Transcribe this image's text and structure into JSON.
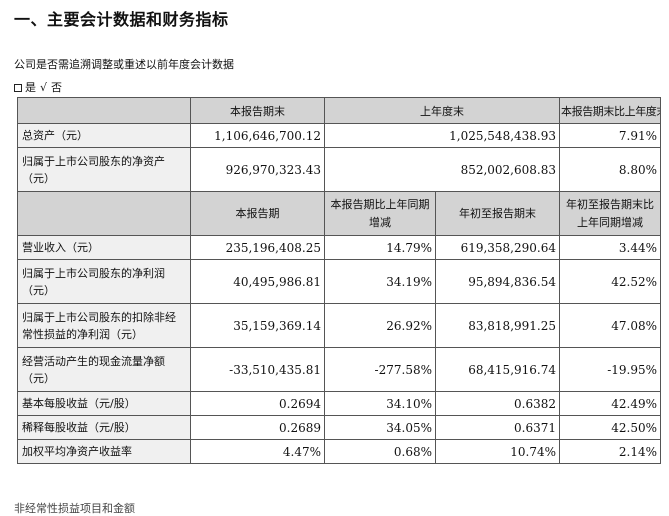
{
  "section": {
    "heading": "一、主要会计数据和财务指标",
    "question": "公司是否需追溯调整或重述以前年度会计数据",
    "answer_yes": "是",
    "answer_check": "√",
    "answer_no": "否"
  },
  "table1": {
    "headers": [
      "",
      "本报告期末",
      "上年度末",
      "本报告期末比上年度末增减"
    ],
    "rows": [
      {
        "label": "总资产（元）",
        "values": [
          "1,106,646,700.12",
          "1,025,548,438.93",
          "7.91%"
        ]
      },
      {
        "label": "归属于上市公司股东的净资产（元）",
        "values": [
          "926,970,323.43",
          "852,002,608.83",
          "8.80%"
        ]
      }
    ]
  },
  "table2": {
    "headers": [
      "",
      "本报告期",
      "本报告期比上年同期增减",
      "年初至报告期末",
      "年初至报告期末比上年同期增减"
    ],
    "rows": [
      {
        "label": "营业收入（元）",
        "values": [
          "235,196,408.25",
          "14.79%",
          "619,358,290.64",
          "3.44%"
        ]
      },
      {
        "label": "归属于上市公司股东的净利润（元）",
        "values": [
          "40,495,986.81",
          "34.19%",
          "95,894,836.54",
          "42.52%"
        ]
      },
      {
        "label": "归属于上市公司股东的扣除非经常性损益的净利润（元）",
        "values": [
          "35,159,369.14",
          "26.92%",
          "83,818,991.25",
          "47.08%"
        ]
      },
      {
        "label": "经营活动产生的现金流量净额（元）",
        "values": [
          "-33,510,435.81",
          "-277.58%",
          "68,415,916.74",
          "-19.95%"
        ]
      },
      {
        "label": "基本每股收益（元/股）",
        "values": [
          "0.2694",
          "34.10%",
          "0.6382",
          "42.49%"
        ]
      },
      {
        "label": "稀释每股收益（元/股）",
        "values": [
          "0.2689",
          "34.05%",
          "0.6371",
          "42.50%"
        ]
      },
      {
        "label": "加权平均净资产收益率",
        "values": [
          "4.47%",
          "0.68%",
          "10.74%",
          "2.14%"
        ]
      }
    ]
  },
  "footer_partial": "非经常性损益项目和金额"
}
